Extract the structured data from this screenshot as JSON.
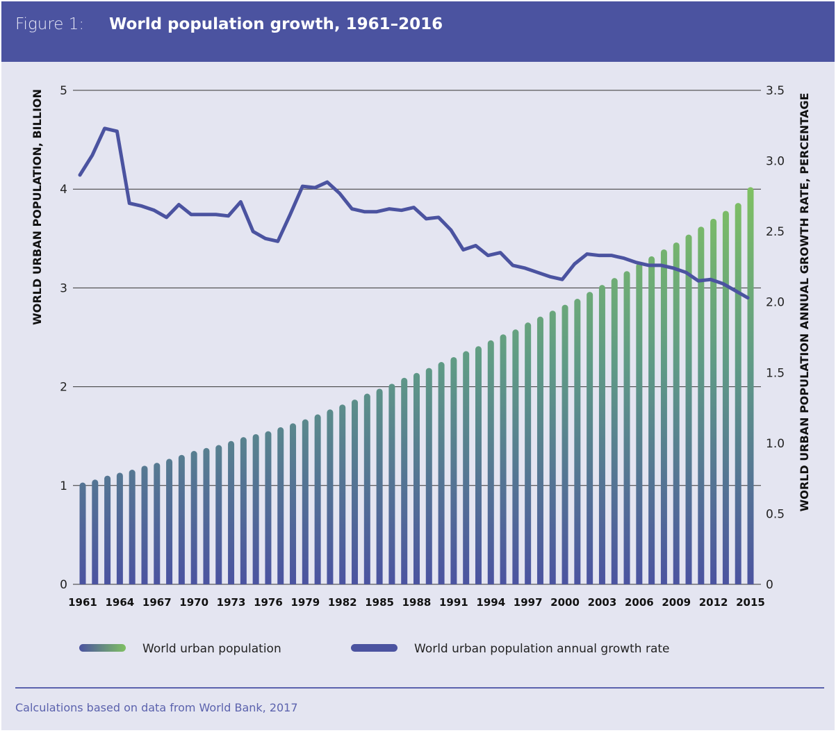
{
  "header": {
    "figure_label": "Figure 1:",
    "title": "World population growth, 1961–2016"
  },
  "source": "Calculations based on data from World Bank, 2017",
  "colors": {
    "header": "#4b53a0",
    "line": "#4b53a0",
    "bar_top": "#7fc063",
    "bar_bottom": "#4b53a0",
    "background": "#e4e5f1"
  },
  "chart_data": {
    "type": "bar+line",
    "title": "World population growth, 1961–2016",
    "ylabel": "WORLD URBAN POPULATION, BILLION",
    "y2label": "WORLD URBAN POPULATION ANNUAL GROWTH RATE, PERCENTAGE",
    "ylim": [
      0,
      5
    ],
    "y2lim": [
      0,
      3.5
    ],
    "yticks": [
      "0",
      "1",
      "2",
      "3",
      "4",
      "5"
    ],
    "y2ticks": [
      "0",
      "0.5",
      "1.0",
      "1.5",
      "2.0",
      "2.5",
      "3.0",
      "3.5"
    ],
    "xticks": [
      "1961",
      "1964",
      "1967",
      "1970",
      "1973",
      "1976",
      "1979",
      "1982",
      "1985",
      "1988",
      "1991",
      "1994",
      "1997",
      "2000",
      "2003",
      "2006",
      "2009",
      "2012",
      "2015"
    ],
    "grid": "horizontal",
    "legend_placement": "bottom",
    "x": [
      1961,
      1962,
      1963,
      1964,
      1965,
      1966,
      1967,
      1968,
      1969,
      1970,
      1971,
      1972,
      1973,
      1974,
      1975,
      1976,
      1977,
      1978,
      1979,
      1980,
      1981,
      1982,
      1983,
      1984,
      1985,
      1986,
      1987,
      1988,
      1989,
      1990,
      1991,
      1992,
      1993,
      1994,
      1995,
      1996,
      1997,
      1998,
      1999,
      2000,
      2001,
      2002,
      2003,
      2004,
      2005,
      2006,
      2007,
      2008,
      2009,
      2010,
      2011,
      2012,
      2013,
      2014,
      2015
    ],
    "series": [
      {
        "name": "World urban population",
        "type": "bar",
        "axis": "left",
        "values": [
          1.03,
          1.06,
          1.1,
          1.13,
          1.16,
          1.2,
          1.23,
          1.27,
          1.31,
          1.35,
          1.38,
          1.41,
          1.45,
          1.49,
          1.52,
          1.55,
          1.59,
          1.63,
          1.67,
          1.72,
          1.77,
          1.82,
          1.87,
          1.93,
          1.98,
          2.03,
          2.09,
          2.14,
          2.19,
          2.25,
          2.3,
          2.36,
          2.41,
          2.47,
          2.53,
          2.58,
          2.65,
          2.71,
          2.77,
          2.83,
          2.89,
          2.96,
          3.03,
          3.1,
          3.17,
          3.25,
          3.32,
          3.39,
          3.46,
          3.54,
          3.62,
          3.7,
          3.78,
          3.86,
          4.02
        ]
      },
      {
        "name": "World urban population annual growth rate",
        "type": "line",
        "axis": "right",
        "values": [
          2.9,
          3.04,
          3.23,
          3.21,
          2.7,
          2.68,
          2.65,
          2.6,
          2.69,
          2.62,
          2.62,
          2.62,
          2.61,
          2.71,
          2.5,
          2.45,
          2.43,
          2.62,
          2.82,
          2.81,
          2.85,
          2.77,
          2.66,
          2.64,
          2.64,
          2.66,
          2.65,
          2.67,
          2.59,
          2.6,
          2.51,
          2.37,
          2.4,
          2.33,
          2.35,
          2.26,
          2.24,
          2.21,
          2.18,
          2.16,
          2.27,
          2.34,
          2.33,
          2.33,
          2.31,
          2.28,
          2.26,
          2.26,
          2.24,
          2.21,
          2.15,
          2.16,
          2.13,
          2.08,
          2.03
        ]
      }
    ]
  }
}
